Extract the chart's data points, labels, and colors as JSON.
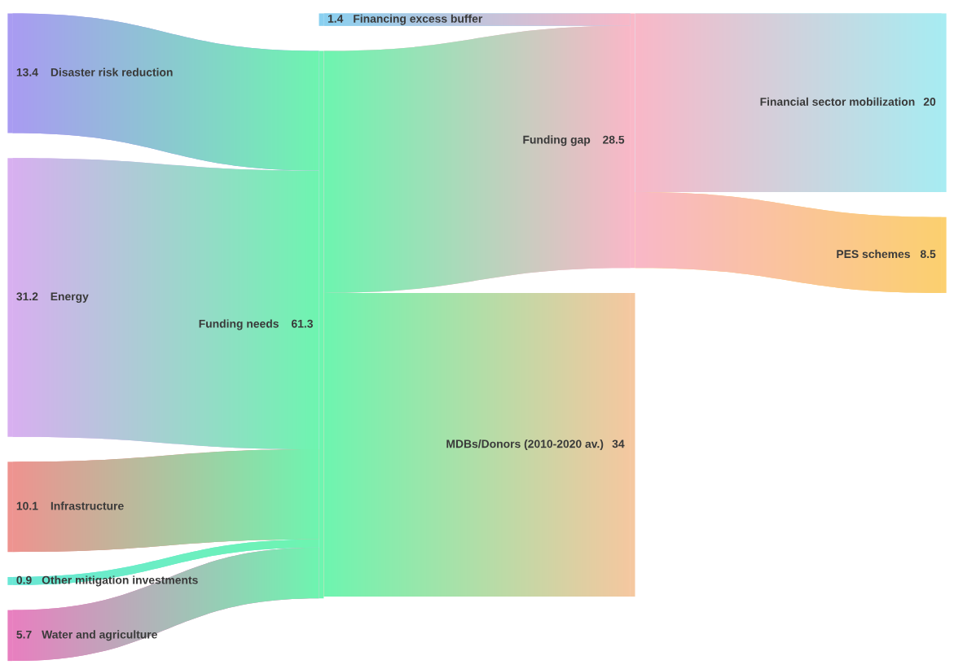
{
  "chart_data": {
    "type": "other",
    "value_labels": [
      "13.4",
      "31.2",
      "10.1",
      "0.9",
      "5.7",
      "1.4",
      "61.3",
      "28.5",
      "34",
      "20",
      "8.5"
    ],
    "categories": [
      "Disaster risk reduction",
      "Energy",
      "Infrastructure",
      "Other mitigation investments",
      "Water and agriculture",
      "Financing excess buffer",
      "Funding needs",
      "Funding gap",
      "MDBs/Donors (2010-2020 av.)",
      "Financial sector mobilization",
      "PES schemes"
    ],
    "values": [
      13.4,
      31.2,
      10.1,
      0.9,
      5.7,
      1.4,
      61.3,
      28.5,
      34,
      20,
      8.5
    ],
    "colors": [
      "#a99cf2",
      "#d8b0f0",
      "#ee9490",
      "#6ae8d6",
      "#e880c0",
      "#8ad0f0",
      "#6ef5b0",
      "#f9b8c8",
      "#f5c8a0",
      "#a8ecf2",
      "#fcd070"
    ],
    "series": [
      {
        "values": [
          true,
          true,
          true,
          true,
          true,
          null,
          null,
          null,
          null,
          null,
          null
        ]
      },
      {
        "values": [
          null,
          null,
          null,
          null,
          null,
          true,
          true,
          null,
          null,
          null,
          null
        ]
      },
      {
        "values": [
          null,
          null,
          null,
          null,
          null,
          null,
          true,
          null,
          null,
          null,
          null
        ]
      },
      {
        "values": [
          null,
          null,
          null,
          null,
          null,
          null,
          null,
          true,
          null,
          null,
          null
        ]
      },
      {
        "values": [
          null,
          null,
          null,
          null,
          null,
          null,
          null,
          true,
          null,
          null,
          null
        ]
      }
    ]
  }
}
